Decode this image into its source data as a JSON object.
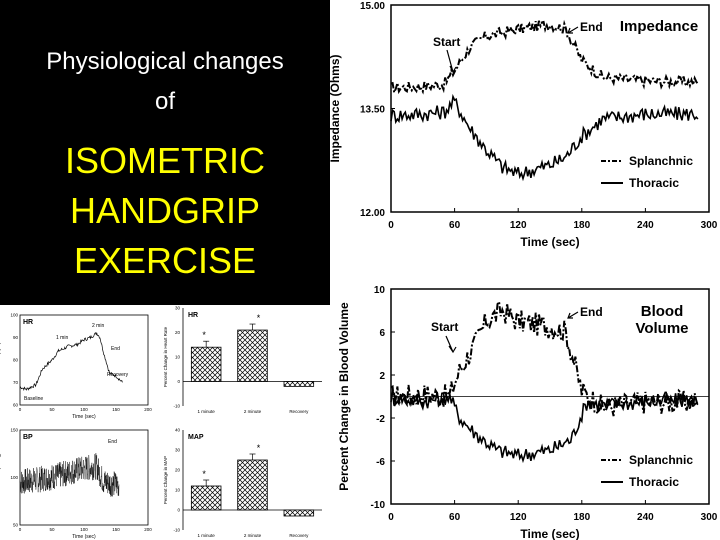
{
  "slide": {
    "title_line1": "Physiological changes",
    "title_line2": "of",
    "title_line3": "ISOMETRIC",
    "title_line4": "HANDGRIP",
    "title_line5": "EXERCISE",
    "title_text_color": "#ffffff",
    "title_accent_color": "#ffff00",
    "title_bg": "#000000"
  },
  "chart_data": [
    {
      "type": "line",
      "title": "Impedance",
      "ylabel": "Impedance (Ohms)",
      "xlabel": "Time (sec)",
      "xlim": [
        0,
        300
      ],
      "ylim": [
        12.0,
        15.0
      ],
      "xticks": [
        "0",
        "60",
        "120",
        "180",
        "240",
        "300"
      ],
      "yticks": [
        "12.00",
        "13.50",
        "15.00"
      ],
      "annotations": [
        "Start",
        "End"
      ],
      "legend": "bottom-right",
      "series": [
        {
          "name": "Splanchnic",
          "style": "dash-dot",
          "x": [
            0,
            30,
            50,
            60,
            75,
            90,
            120,
            150,
            165,
            180,
            200,
            240,
            290
          ],
          "y": [
            13.8,
            13.82,
            13.85,
            14.05,
            14.4,
            14.55,
            14.65,
            14.72,
            14.65,
            14.2,
            13.95,
            13.9,
            13.88
          ]
        },
        {
          "name": "Thoracic",
          "style": "solid",
          "x": [
            0,
            30,
            50,
            60,
            75,
            90,
            105,
            120,
            150,
            165,
            180,
            200,
            240,
            290
          ],
          "y": [
            13.4,
            13.42,
            13.45,
            13.6,
            13.2,
            12.9,
            12.65,
            12.55,
            12.68,
            12.8,
            13.1,
            13.35,
            13.42,
            13.42
          ]
        }
      ]
    },
    {
      "type": "line",
      "title": "Blood Volume",
      "title_lines": [
        "Blood",
        "Volume"
      ],
      "ylabel": "Percent Change in Blood Volume",
      "xlabel": "Time (sec)",
      "xlim": [
        0,
        300
      ],
      "ylim": [
        -10,
        10
      ],
      "xticks": [
        "0",
        "60",
        "120",
        "180",
        "240",
        "300"
      ],
      "yticks": [
        "10",
        "6",
        "2",
        "-2",
        "-6",
        "-10"
      ],
      "zero_line": 0,
      "annotations": [
        "Start",
        "End"
      ],
      "legend": "bottom-right",
      "series": [
        {
          "name": "Splanchnic",
          "style": "dash-dot",
          "x": [
            0,
            30,
            55,
            65,
            80,
            90,
            105,
            120,
            150,
            165,
            180,
            200,
            240,
            290
          ],
          "y": [
            0,
            0.2,
            0,
            2.5,
            5,
            7,
            8,
            7,
            6.5,
            6,
            0.5,
            -1,
            -0.5,
            -0.5
          ]
        },
        {
          "name": "Thoracic",
          "style": "solid",
          "x": [
            0,
            30,
            55,
            65,
            80,
            100,
            120,
            150,
            170,
            185,
            200,
            240,
            290
          ],
          "y": [
            0,
            -0.5,
            0,
            -2,
            -3.5,
            -5,
            -5.5,
            -5,
            -4,
            -0.5,
            -0.8,
            -0.5,
            -0.3
          ]
        }
      ]
    },
    {
      "type": "line",
      "title": "HR",
      "ylabel": "Heart Rate (bpm)",
      "xlabel": "Time (sec)",
      "xlim": [
        0,
        200
      ],
      "ylim": [
        60,
        100
      ],
      "xticks": [
        "0",
        "50",
        "100",
        "150",
        "200"
      ],
      "yticks": [
        "100",
        "90",
        "80",
        "70",
        "60"
      ],
      "annotations": [
        "1 min",
        "2 min",
        "End",
        "Recovery",
        "Baseline"
      ],
      "series": [
        {
          "x": [
            0,
            10,
            25,
            35,
            50,
            60,
            75,
            90,
            100,
            110,
            120,
            125,
            130,
            140,
            150,
            160
          ],
          "y": [
            68,
            67,
            69,
            76,
            80,
            84,
            86,
            87,
            89,
            90,
            92,
            90,
            84,
            74,
            73,
            70
          ]
        }
      ]
    },
    {
      "type": "bar",
      "title": "HR",
      "ylabel": "Percent Change in Heart Rate",
      "ylim": [
        -10,
        30
      ],
      "yticks": [
        "30",
        "20",
        "10",
        "0",
        "-10"
      ],
      "categories": [
        "1 minute",
        "2 minute",
        "Recovery"
      ],
      "values": [
        14,
        21,
        -2
      ],
      "annotations": [
        "*",
        "*"
      ]
    },
    {
      "type": "line",
      "title": "BP",
      "ylabel": "Blood Pressure (mmHg)",
      "xlabel": "Time (sec)",
      "xlim": [
        0,
        200
      ],
      "ylim": [
        50,
        150
      ],
      "xticks": [
        "0",
        "50",
        "100",
        "150",
        "200"
      ],
      "yticks": [
        "150",
        "100",
        "50"
      ],
      "annotations": [
        "End"
      ],
      "series": [
        {
          "x": [
            0,
            30,
            60,
            90,
            120,
            125,
            130,
            140,
            150,
            155
          ],
          "y": [
            95,
            98,
            102,
            108,
            112,
            104,
            96,
            94,
            93,
            92
          ]
        }
      ]
    },
    {
      "type": "bar",
      "title": "MAP",
      "ylabel": "Percent Change in MAP",
      "ylim": [
        -10,
        40
      ],
      "yticks": [
        "40",
        "30",
        "20",
        "10",
        "0",
        "-10"
      ],
      "categories": [
        "1 minute",
        "2 minute",
        "Recovery"
      ],
      "values": [
        12,
        25,
        -3
      ],
      "annotations": [
        "*",
        "*"
      ]
    }
  ]
}
